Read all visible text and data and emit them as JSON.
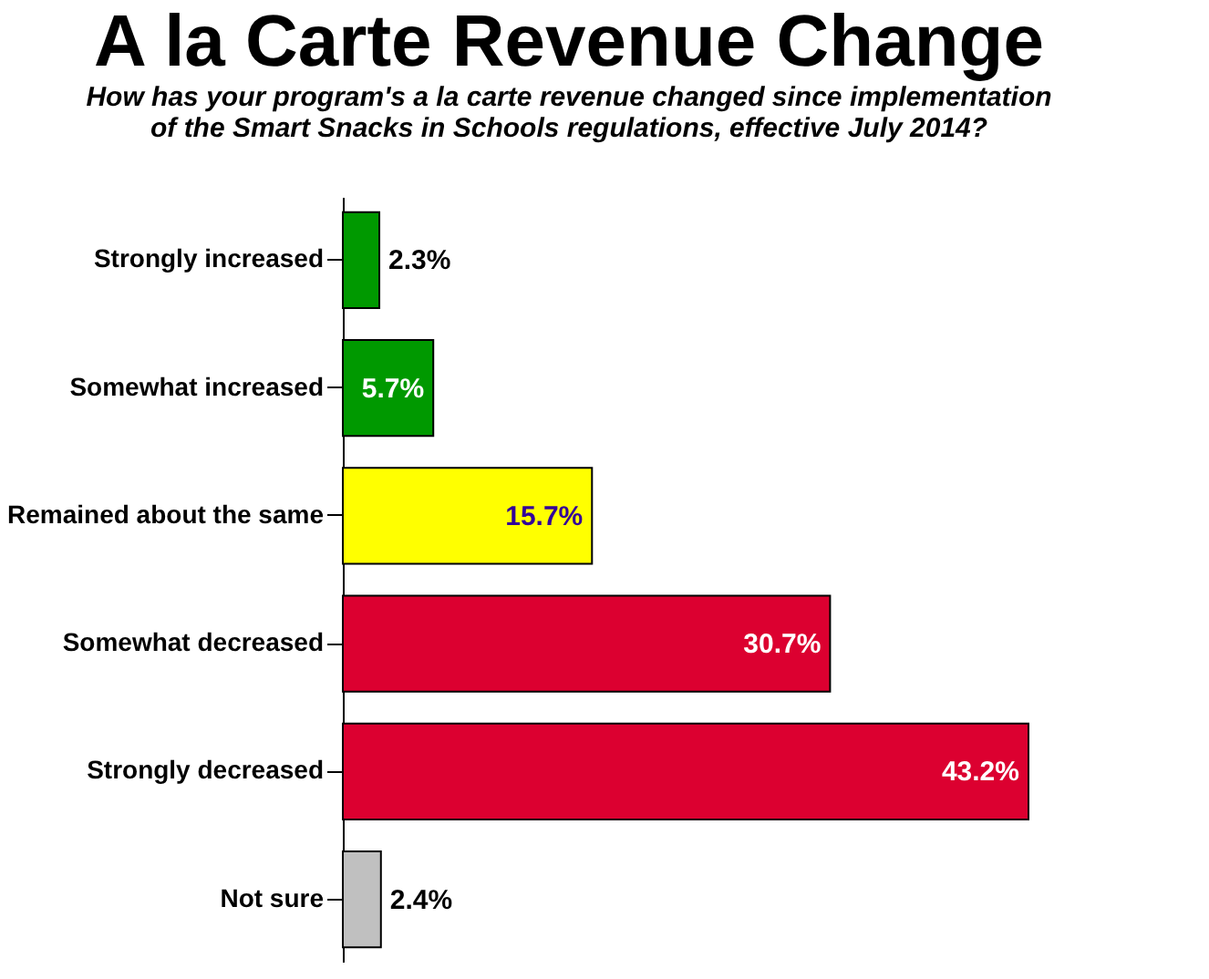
{
  "chart_data": {
    "type": "bar",
    "orientation": "horizontal",
    "title": "A la Carte Revenue Change",
    "subtitle": "How has your program's a la carte revenue changed since implementation\nof the Smart Snacks in Schools regulations, effective July 2014?",
    "categories": [
      "Strongly increased",
      "Somewhat increased",
      "Remained about the same",
      "Somewhat decreased",
      "Strongly decreased",
      "Not sure"
    ],
    "values": [
      2.3,
      5.7,
      15.7,
      30.7,
      43.2,
      2.4
    ],
    "value_labels": [
      "2.3%",
      "5.7%",
      "15.7%",
      "30.7%",
      "43.2%",
      "2.4%"
    ],
    "colors": [
      "#009900",
      "#009900",
      "#ffff00",
      "#dc0030",
      "#dc0030",
      "#c0c0c0"
    ]
  }
}
